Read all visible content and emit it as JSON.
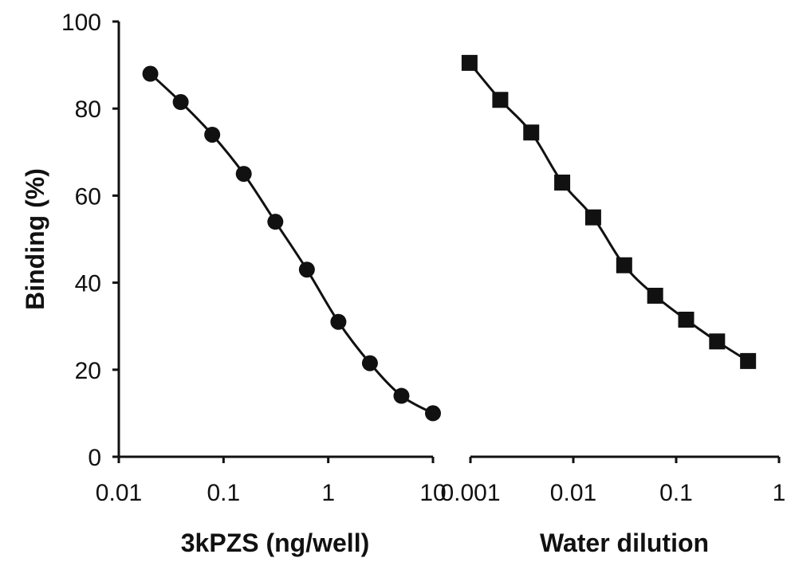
{
  "chart_data": [
    {
      "type": "line",
      "xscale": "log",
      "xlim": [
        0.01,
        10
      ],
      "ylim": [
        0,
        100
      ],
      "xlabel": "3kPZS (ng/well)",
      "ylabel": "Binding (%)",
      "xticks": [
        0.01,
        0.1,
        1,
        10
      ],
      "xtick_labels": [
        "0.01",
        "0.1",
        "1",
        "10"
      ],
      "yticks": [
        0,
        20,
        40,
        60,
        80,
        100
      ],
      "ytick_labels": [
        "0",
        "20",
        "40",
        "60",
        "80",
        "100"
      ],
      "marker": "circle",
      "color": "#111111",
      "grid": false,
      "series": [
        {
          "x": [
            0.02,
            0.039,
            0.078,
            0.156,
            0.3125,
            0.625,
            1.25,
            2.5,
            5,
            10
          ],
          "y": [
            88,
            81.5,
            74,
            65,
            54,
            43,
            31,
            21.5,
            14,
            10
          ]
        }
      ]
    },
    {
      "type": "line",
      "xscale": "log",
      "xlim": [
        0.001,
        1
      ],
      "xlabel": "Water dilution",
      "xticks": [
        0.001,
        0.01,
        0.1,
        1
      ],
      "xtick_labels": [
        "0.001",
        "0.01",
        "0.1",
        "1"
      ],
      "marker": "square",
      "color": "#111111",
      "grid": false,
      "series": [
        {
          "x": [
            0.00098,
            0.00195,
            0.0039,
            0.0078,
            0.0156,
            0.03125,
            0.0625,
            0.125,
            0.25,
            0.5
          ],
          "y": [
            90.5,
            82,
            74.5,
            63,
            55,
            44,
            37,
            31.5,
            26.5,
            22
          ]
        }
      ]
    }
  ]
}
